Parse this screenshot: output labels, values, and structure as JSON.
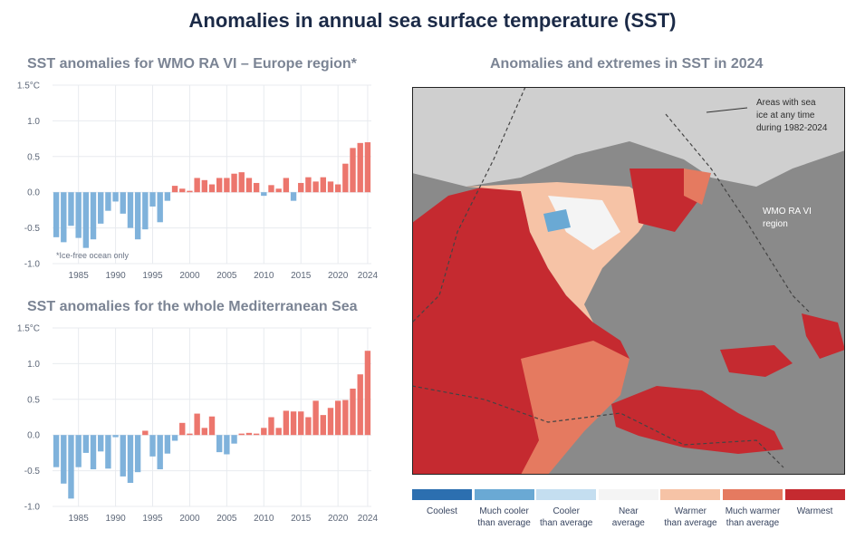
{
  "title": "Anomalies in annual sea surface temperature (SST)",
  "panel1_title": "SST anomalies for WMO RA VI – Europe region*",
  "panel2_title": "SST anomalies for the whole Mediterranean Sea",
  "panel3_title": "Anomalies and extremes in SST in 2024",
  "panel1_note": "*Ice-free ocean only",
  "colors": {
    "negative": "#7fb2db",
    "positive": "#ec766d",
    "grid": "#e8ebef",
    "title": "#1b2a47",
    "subtitle": "#7b8494"
  },
  "chart_data": [
    {
      "type": "bar",
      "title": "SST anomalies for WMO RA VI – Europe region*",
      "x": [
        1982,
        1983,
        1984,
        1985,
        1986,
        1987,
        1988,
        1989,
        1990,
        1991,
        1992,
        1993,
        1994,
        1995,
        1996,
        1997,
        1998,
        1999,
        2000,
        2001,
        2002,
        2003,
        2004,
        2005,
        2006,
        2007,
        2008,
        2009,
        2010,
        2011,
        2012,
        2013,
        2014,
        2015,
        2016,
        2017,
        2018,
        2019,
        2020,
        2021,
        2022,
        2023,
        2024
      ],
      "values": [
        -0.63,
        -0.7,
        -0.47,
        -0.64,
        -0.78,
        -0.66,
        -0.44,
        -0.26,
        -0.13,
        -0.3,
        -0.5,
        -0.66,
        -0.52,
        -0.2,
        -0.42,
        -0.12,
        0.09,
        0.05,
        0.02,
        0.2,
        0.17,
        0.11,
        0.2,
        0.2,
        0.26,
        0.28,
        0.2,
        0.13,
        -0.05,
        0.1,
        0.05,
        0.2,
        -0.12,
        0.13,
        0.21,
        0.15,
        0.21,
        0.15,
        0.11,
        0.4,
        0.62,
        0.69,
        0.7
      ],
      "ylim": [
        -1.0,
        1.5
      ],
      "yticks": [
        "1.5°C",
        "1.0",
        "0.5",
        "0.0",
        "-0.5",
        "-1.0"
      ],
      "xticks": [
        "1985",
        "1990",
        "1995",
        "2000",
        "2005",
        "2010",
        "2015",
        "2020",
        "2024"
      ],
      "grid": true
    },
    {
      "type": "bar",
      "title": "SST anomalies for the whole Mediterranean Sea",
      "x": [
        1982,
        1983,
        1984,
        1985,
        1986,
        1987,
        1988,
        1989,
        1990,
        1991,
        1992,
        1993,
        1994,
        1995,
        1996,
        1997,
        1998,
        1999,
        2000,
        2001,
        2002,
        2003,
        2004,
        2005,
        2006,
        2007,
        2008,
        2009,
        2010,
        2011,
        2012,
        2013,
        2014,
        2015,
        2016,
        2017,
        2018,
        2019,
        2020,
        2021,
        2022,
        2023,
        2024
      ],
      "values": [
        -0.45,
        -0.68,
        -0.89,
        -0.45,
        -0.25,
        -0.48,
        -0.23,
        -0.47,
        -0.03,
        -0.58,
        -0.67,
        -0.52,
        0.06,
        -0.3,
        -0.48,
        -0.26,
        -0.08,
        0.17,
        0.02,
        0.3,
        0.1,
        0.26,
        -0.24,
        -0.27,
        -0.12,
        0.02,
        0.03,
        0.02,
        0.1,
        0.25,
        0.1,
        0.34,
        0.33,
        0.33,
        0.25,
        0.48,
        0.28,
        0.38,
        0.48,
        0.49,
        0.65,
        0.85,
        1.18
      ],
      "ylim": [
        -1.0,
        1.5
      ],
      "yticks": [
        "1.5°C",
        "1.0",
        "0.5",
        "0.0",
        "-0.5",
        "-1.0"
      ],
      "xticks": [
        "1985",
        "1990",
        "1995",
        "2000",
        "2005",
        "2010",
        "2015",
        "2020",
        "2024"
      ],
      "grid": true
    }
  ],
  "map": {
    "annotation_ice": [
      "Areas with sea",
      "ice at any time",
      "during 1982-2024"
    ],
    "annotation_region": [
      "WMO RA VI",
      "region"
    ],
    "legend": [
      {
        "label": [
          "Coolest"
        ],
        "color": "#2c6fb0"
      },
      {
        "label": [
          "Much cooler",
          "than average"
        ],
        "color": "#6aa9d4"
      },
      {
        "label": [
          "Cooler",
          "than average"
        ],
        "color": "#c4def0"
      },
      {
        "label": [
          "Near",
          "average"
        ],
        "color": "#f4f4f4"
      },
      {
        "label": [
          "Warmer",
          "than average"
        ],
        "color": "#f6c3a6"
      },
      {
        "label": [
          "Much warmer",
          "than average"
        ],
        "color": "#e57a60"
      },
      {
        "label": [
          "Warmest"
        ],
        "color": "#c52a30"
      }
    ]
  }
}
